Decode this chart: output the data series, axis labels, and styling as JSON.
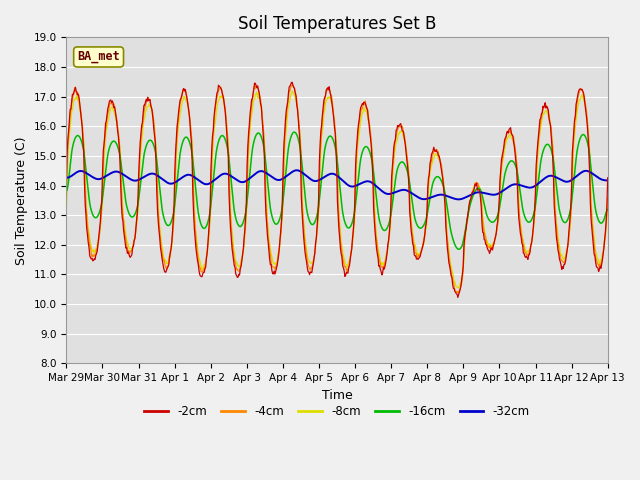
{
  "title": "Soil Temperatures Set B",
  "xlabel": "Time",
  "ylabel": "Soil Temperature (C)",
  "ylim": [
    8.0,
    19.0
  ],
  "yticks": [
    8.0,
    9.0,
    10.0,
    11.0,
    12.0,
    13.0,
    14.0,
    15.0,
    16.0,
    17.0,
    18.0,
    19.0
  ],
  "annotation": "BA_met",
  "fig_bg_color": "#f0f0f0",
  "ax_bg_color": "#e0e0e0",
  "line_colors": {
    "-2cm": "#cc0000",
    "-4cm": "#ff8800",
    "-8cm": "#dddd00",
    "-16cm": "#00bb00",
    "-32cm": "#0000cc"
  },
  "legend_labels": [
    "-2cm",
    "-4cm",
    "-8cm",
    "-16cm",
    "-32cm"
  ],
  "x_tick_labels": [
    "Mar 29",
    "Mar 30",
    "Mar 31",
    "Apr 1",
    "Apr 2",
    "Apr 3",
    "Apr 4",
    "Apr 5",
    "Apr 6",
    "Apr 7",
    "Apr 8",
    "Apr 9",
    "Apr 10",
    "Apr 11",
    "Apr 12",
    "Apr 13"
  ],
  "days": 15,
  "title_fontsize": 12,
  "axis_label_fontsize": 9,
  "tick_fontsize": 7.5
}
